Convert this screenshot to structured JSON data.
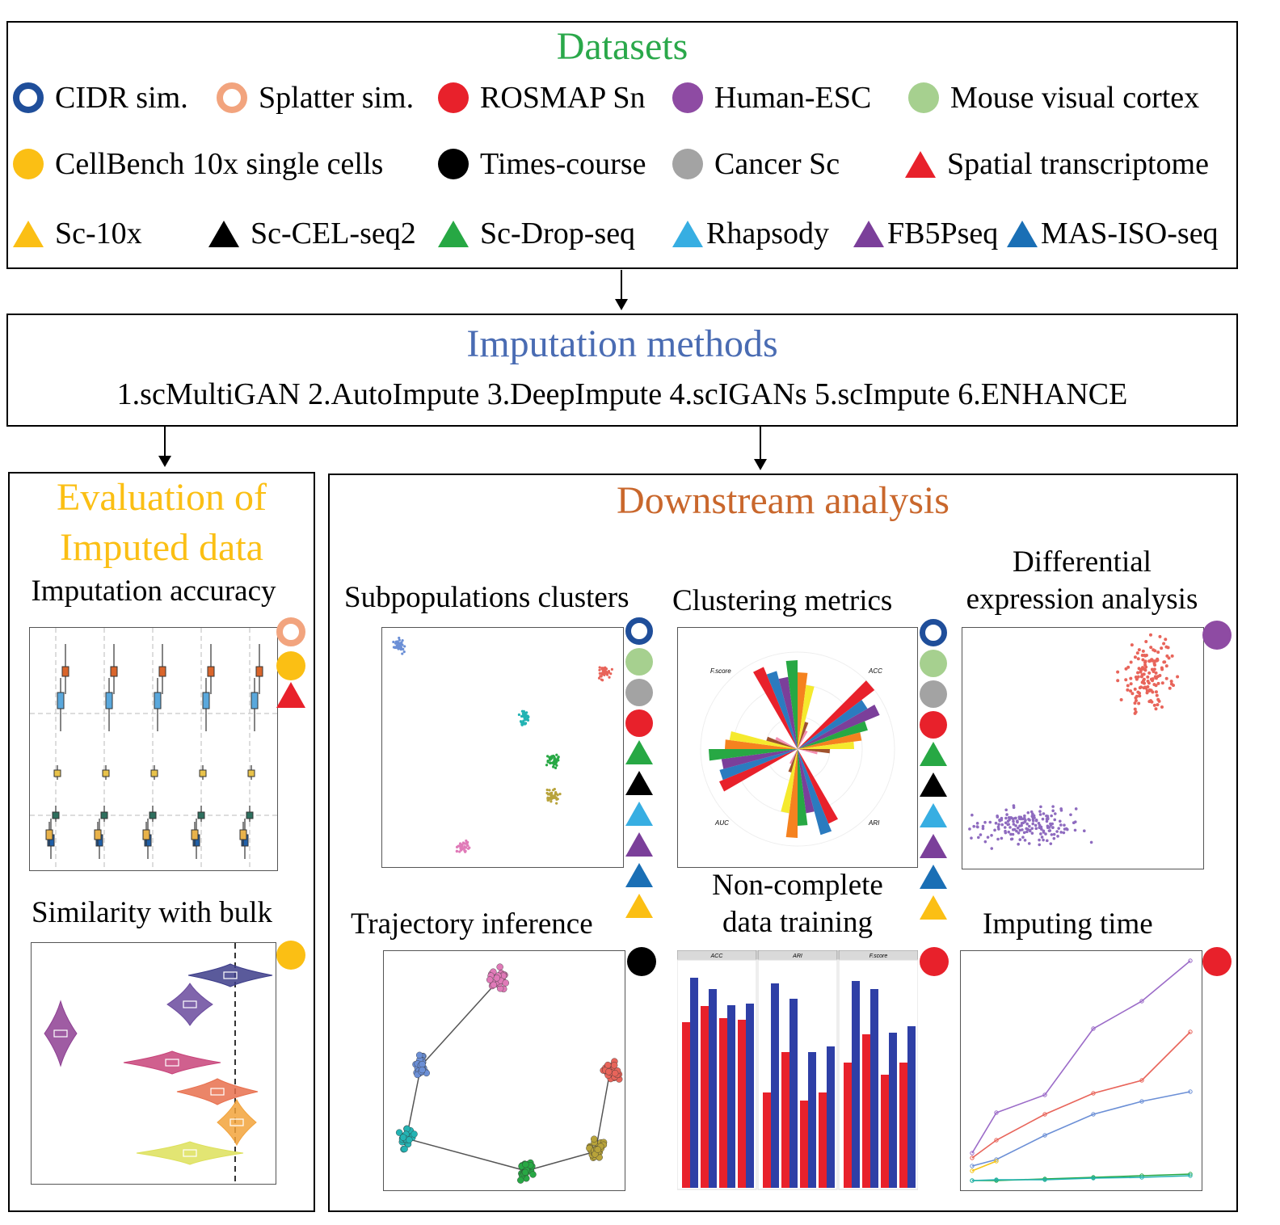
{
  "datasets": {
    "title": "Datasets",
    "title_color": "#2aa84a",
    "items": [
      {
        "label": "CIDR sim.",
        "shape": "ring",
        "color": "#1f4e9a"
      },
      {
        "label": "Splatter sim.",
        "shape": "ring",
        "color": "#f2a47e"
      },
      {
        "label": "ROSMAP Sn",
        "shape": "circle",
        "color": "#e8212b"
      },
      {
        "label": "Human-ESC",
        "shape": "circle",
        "color": "#8e4ba3"
      },
      {
        "label": "Mouse visual cortex",
        "shape": "circle",
        "color": "#a6d08f"
      },
      {
        "label": "CellBench 10x single cells",
        "shape": "circle",
        "color": "#fbbf14"
      },
      {
        "label": "Times-course",
        "shape": "circle",
        "color": "#000000"
      },
      {
        "label": "Cancer Sc",
        "shape": "circle",
        "color": "#a3a3a3"
      },
      {
        "label": "Spatial transcriptome",
        "shape": "triangle",
        "color": "#e8212b"
      },
      {
        "label": "Sc-10x",
        "shape": "triangle",
        "color": "#fbbf14"
      },
      {
        "label": "Sc-CEL-seq2",
        "shape": "triangle",
        "color": "#000000"
      },
      {
        "label": "Sc-Drop-seq",
        "shape": "triangle",
        "color": "#27a844"
      },
      {
        "label": "Rhapsody",
        "shape": "triangle",
        "color": "#37aee2"
      },
      {
        "label": "FB5Pseq",
        "shape": "triangle",
        "color": "#7b3f9a"
      },
      {
        "label": "MAS-ISO-seq",
        "shape": "triangle",
        "color": "#1a6fb5"
      }
    ]
  },
  "imputation": {
    "title": "Imputation methods",
    "title_color": "#4a6cb3",
    "methods": "1.scMultiGAN 2.AutoImpute 3.DeepImpute 4.scIGANs 5.scImpute 6.ENHANCE"
  },
  "evaluation": {
    "title_line1": "Evaluation of",
    "title_line2": "Imputed data",
    "title_color": "#fbbf14",
    "accuracy_label": "Imputation accuracy",
    "similarity_label": "Similarity with bulk"
  },
  "downstream": {
    "title": "Downstream analysis",
    "title_color": "#c9672c",
    "subpopulations_label": "Subpopulations clusters",
    "clustering_label": "Clustering metrics",
    "differential_label_1": "Differential",
    "differential_label_2": "expression analysis",
    "trajectory_label": "Trajectory inference",
    "noncomplete_label_1": "Non-complete",
    "noncomplete_label_2": "data training",
    "imputing_time_label": "Imputing time",
    "radar_axes": [
      "F.score",
      "ACC",
      "AUC",
      "ARI"
    ],
    "facet_titles": [
      "ACC",
      "ARI",
      "F.score"
    ]
  }
}
